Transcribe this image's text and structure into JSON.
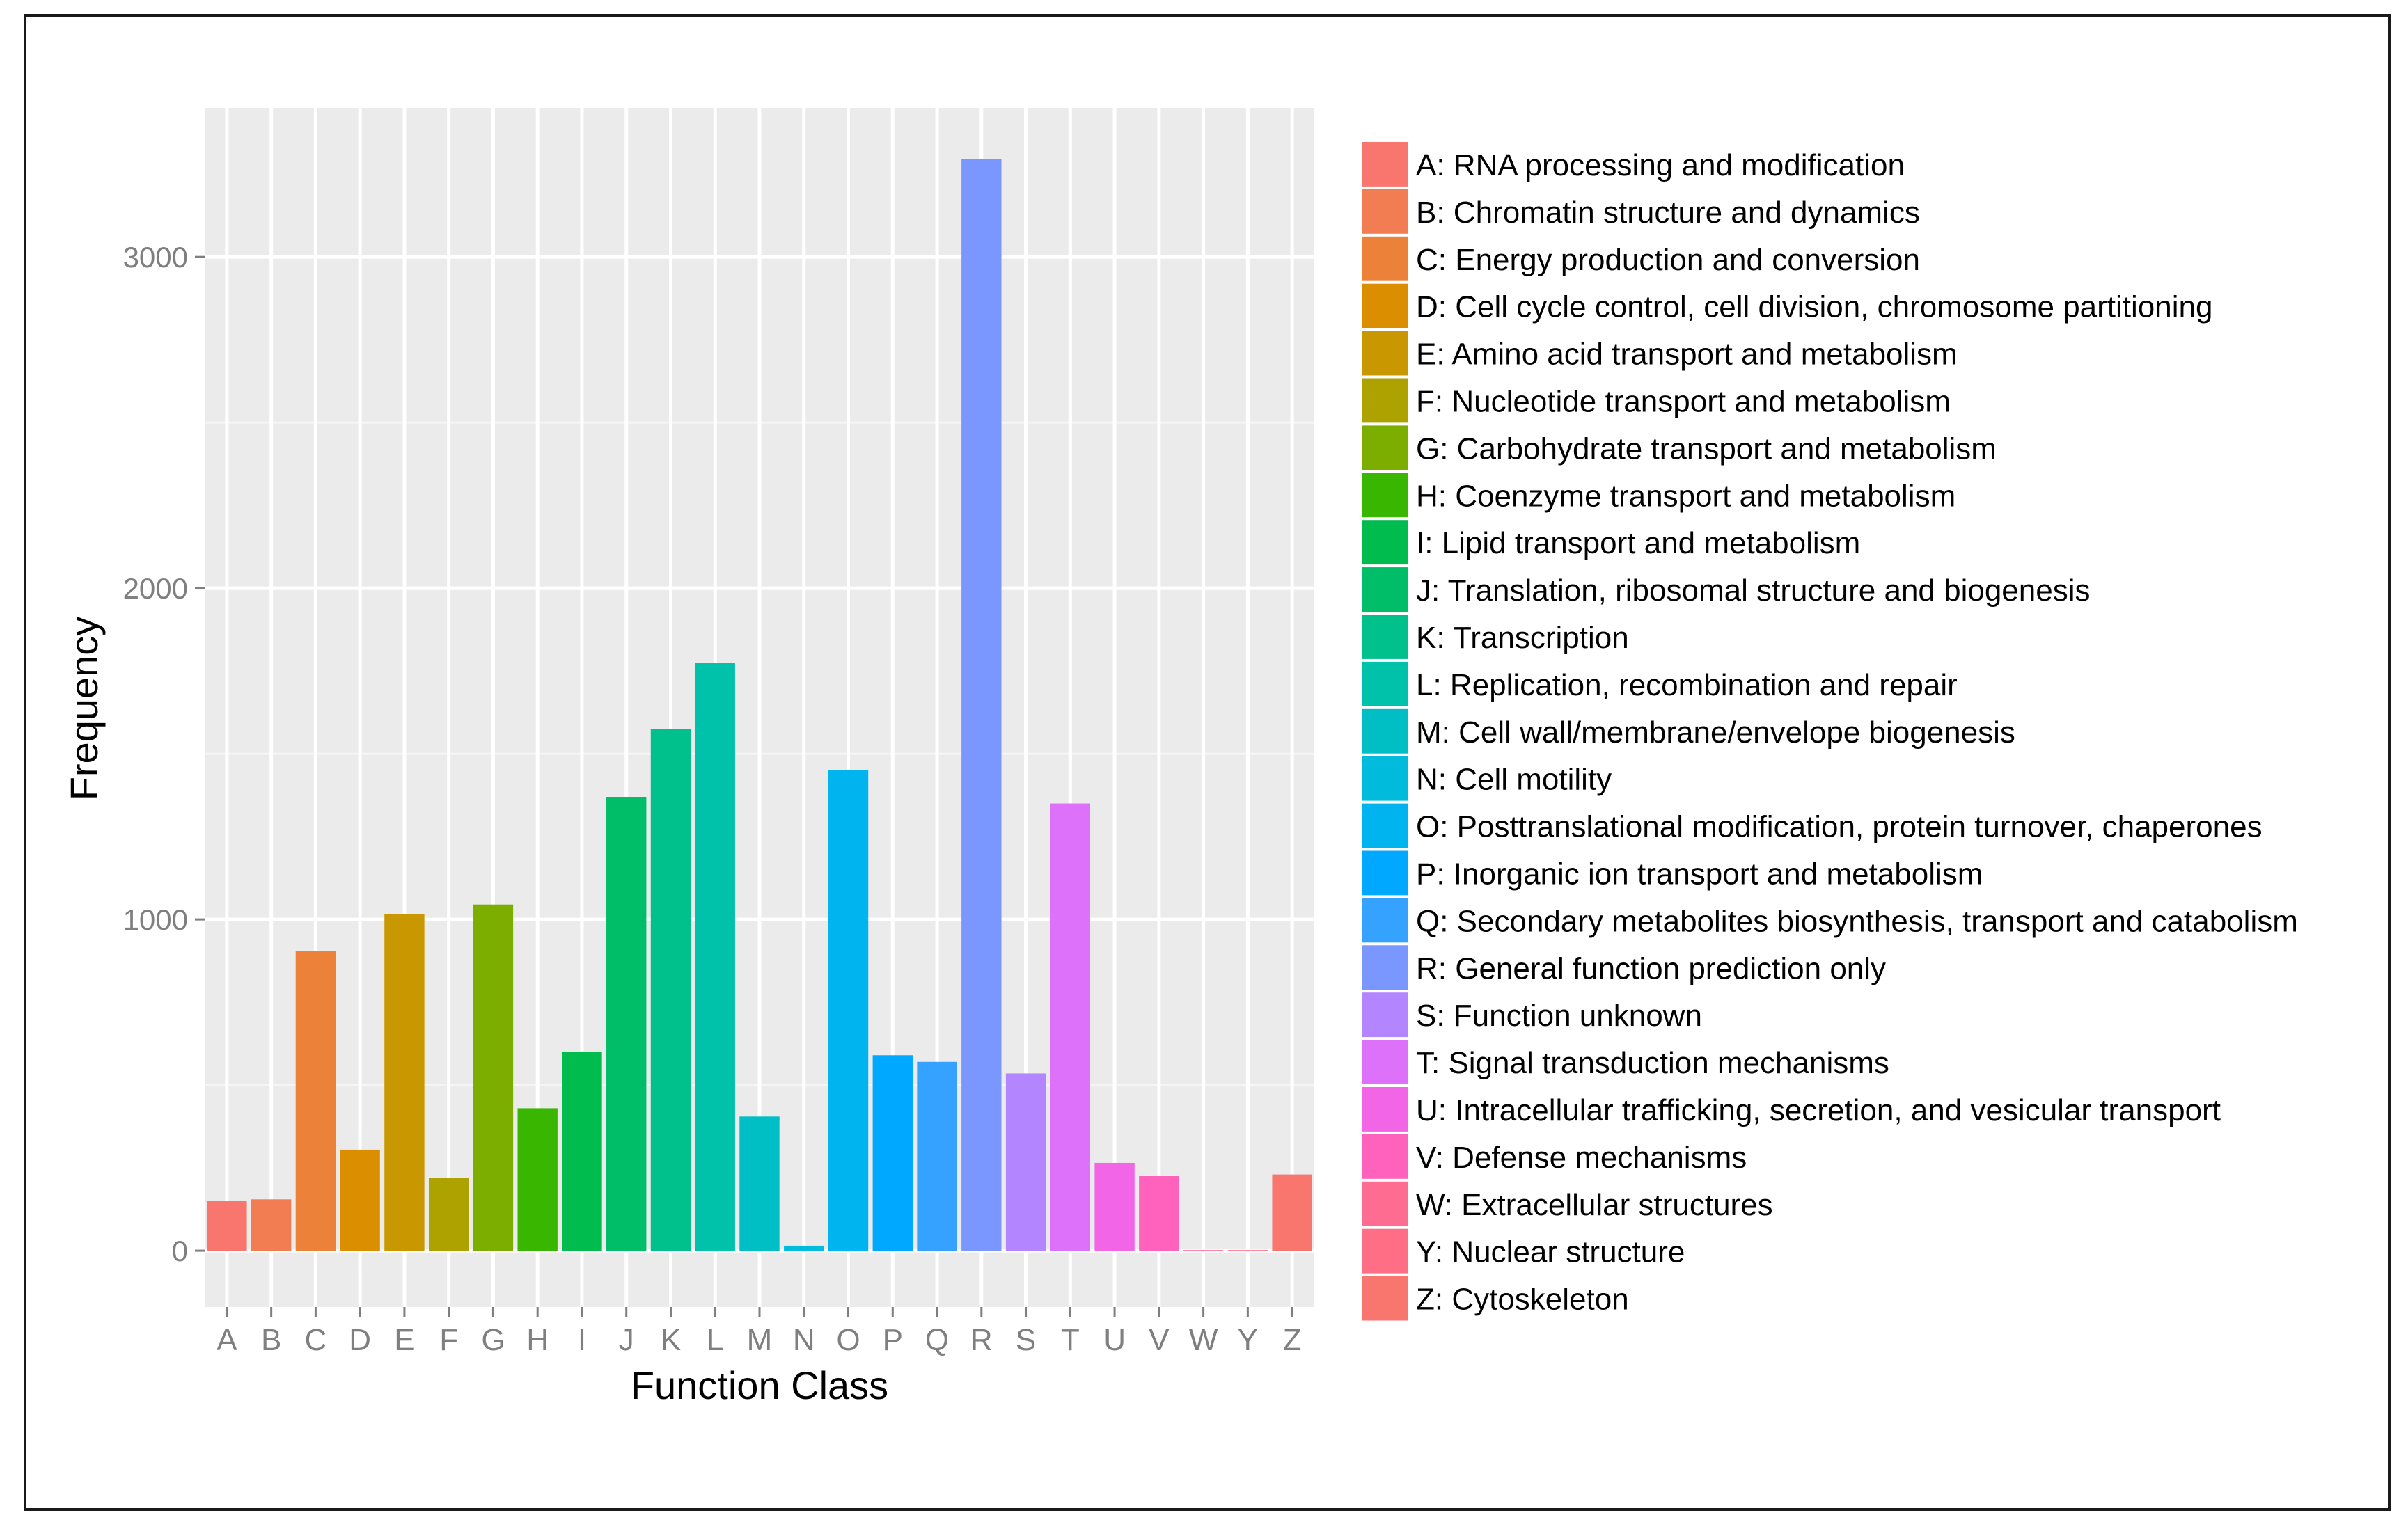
{
  "chart_data": {
    "type": "bar",
    "title": "",
    "xlabel": "Function Class",
    "ylabel": "Frequency",
    "ylim": [
      -170,
      3450
    ],
    "yticks": [
      0,
      1000,
      2000,
      3000
    ],
    "grid": true,
    "legend_position": "right",
    "categories": [
      "A",
      "B",
      "C",
      "D",
      "E",
      "F",
      "G",
      "H",
      "I",
      "J",
      "K",
      "L",
      "M",
      "N",
      "O",
      "P",
      "Q",
      "R",
      "S",
      "T",
      "U",
      "V",
      "W",
      "Y",
      "Z"
    ],
    "values": [
      150,
      155,
      905,
      305,
      1015,
      220,
      1045,
      430,
      600,
      1370,
      1575,
      1775,
      405,
      15,
      1450,
      590,
      570,
      3295,
      535,
      1350,
      265,
      225,
      2,
      2,
      230
    ],
    "colors": [
      "#F8766D",
      "#F27D52",
      "#EC8239",
      "#DB8E00",
      "#C99800",
      "#AEA200",
      "#7CAE00",
      "#39B600",
      "#00BB4E",
      "#00BE67",
      "#00C08B",
      "#00C1A9",
      "#00BFC4",
      "#00BBDB",
      "#00B4EF",
      "#00A9FF",
      "#35A2FF",
      "#7997FF",
      "#B385FF",
      "#DD71FA",
      "#F265E7",
      "#FF62BC",
      "#FF6C91",
      "#FF6E84",
      "#F8766D"
    ],
    "legend": [
      "A: RNA processing and modification",
      "B: Chromatin structure and dynamics",
      "C: Energy production and conversion",
      "D: Cell cycle control, cell division, chromosome partitioning",
      "E: Amino acid transport and metabolism",
      "F: Nucleotide transport and metabolism",
      "G: Carbohydrate transport and metabolism",
      "H: Coenzyme transport and metabolism",
      "I: Lipid transport and metabolism",
      "J: Translation, ribosomal structure and biogenesis",
      "K: Transcription",
      "L: Replication, recombination and repair",
      "M: Cell wall/membrane/envelope biogenesis",
      "N: Cell motility",
      "O: Posttranslational modification, protein turnover, chaperones",
      "P: Inorganic ion transport and metabolism",
      "Q: Secondary metabolites biosynthesis, transport and catabolism",
      "R: General function prediction only",
      "S: Function unknown",
      "T: Signal transduction mechanisms",
      "U: Intracellular trafficking, secretion, and vesicular transport",
      "V: Defense mechanisms",
      "W: Extracellular structures",
      "Y: Nuclear structure",
      "Z: Cytoskeleton"
    ]
  }
}
